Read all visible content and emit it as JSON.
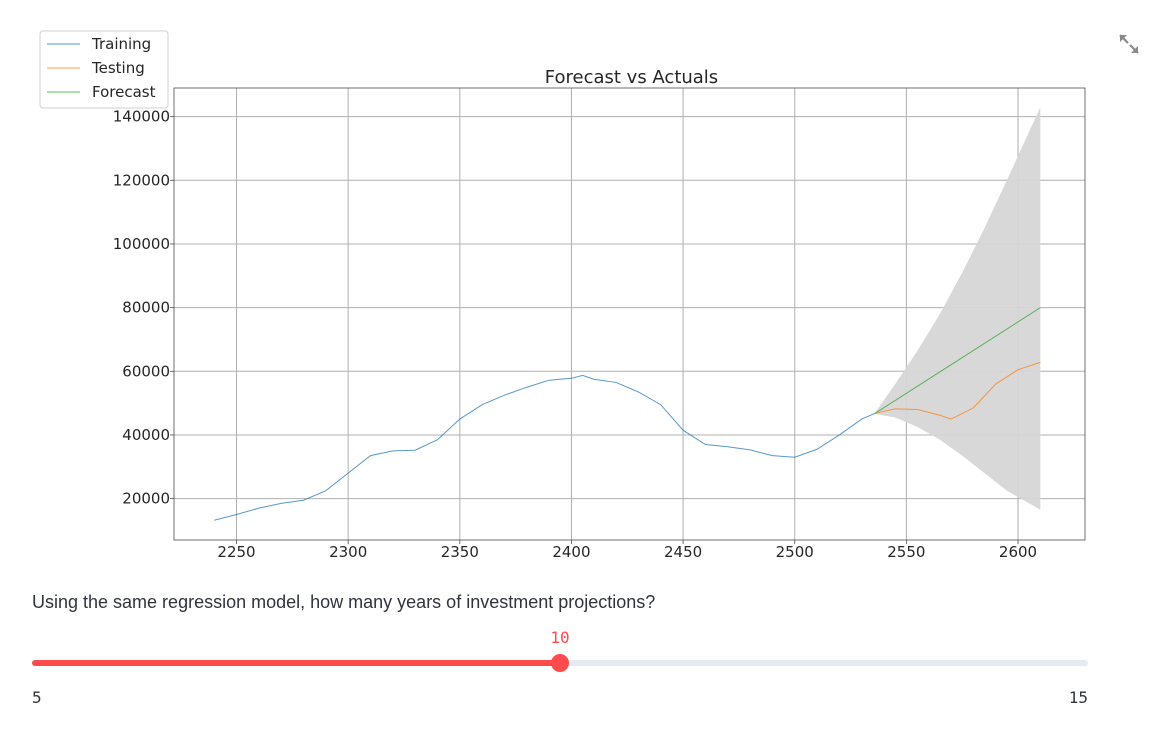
{
  "chart_data": {
    "type": "line",
    "title": "Forecast vs Actuals",
    "xlabel": "",
    "ylabel": "",
    "xlim": [
      2222,
      2630
    ],
    "ylim": [
      7000,
      149000
    ],
    "x_ticks": [
      2250,
      2300,
      2350,
      2400,
      2450,
      2500,
      2550,
      2600
    ],
    "y_ticks": [
      20000,
      40000,
      60000,
      80000,
      100000,
      120000,
      140000
    ],
    "grid": true,
    "legend_position": "top-left",
    "series": [
      {
        "name": "Training",
        "color": "#1f77b4",
        "points": [
          [
            2240,
            13200
          ],
          [
            2250,
            15000
          ],
          [
            2260,
            17000
          ],
          [
            2270,
            18500
          ],
          [
            2280,
            19500
          ],
          [
            2290,
            22500
          ],
          [
            2300,
            28000
          ],
          [
            2310,
            33500
          ],
          [
            2320,
            35000
          ],
          [
            2330,
            35200
          ],
          [
            2340,
            38500
          ],
          [
            2350,
            45000
          ],
          [
            2360,
            49500
          ],
          [
            2370,
            52500
          ],
          [
            2380,
            55000
          ],
          [
            2390,
            57200
          ],
          [
            2400,
            57800
          ],
          [
            2405,
            58700
          ],
          [
            2410,
            57500
          ],
          [
            2420,
            56500
          ],
          [
            2430,
            53500
          ],
          [
            2440,
            49500
          ],
          [
            2450,
            41500
          ],
          [
            2460,
            37000
          ],
          [
            2470,
            36300
          ],
          [
            2480,
            35300
          ],
          [
            2490,
            33500
          ],
          [
            2500,
            33000
          ],
          [
            2510,
            35500
          ],
          [
            2520,
            40000
          ],
          [
            2530,
            45000
          ],
          [
            2536,
            46800
          ]
        ]
      },
      {
        "name": "Testing",
        "color": "#ff7f0e",
        "points": [
          [
            2536,
            46800
          ],
          [
            2545,
            48200
          ],
          [
            2555,
            48000
          ],
          [
            2565,
            46200
          ],
          [
            2570,
            45000
          ],
          [
            2580,
            48500
          ],
          [
            2590,
            56000
          ],
          [
            2600,
            60500
          ],
          [
            2610,
            62800
          ]
        ]
      },
      {
        "name": "Forecast",
        "color": "#2ca02c",
        "points": [
          [
            2536,
            46800
          ],
          [
            2610,
            80000
          ]
        ]
      }
    ],
    "confidence_band": {
      "color": "#d6d6d6",
      "x": [
        2536,
        2545,
        2555,
        2565,
        2575,
        2585,
        2595,
        2610
      ],
      "upper": [
        47000,
        56000,
        66500,
        78000,
        91000,
        105000,
        120000,
        143000
      ],
      "lower": [
        46600,
        45500,
        42500,
        38500,
        33500,
        28000,
        22500,
        16500
      ]
    }
  },
  "expand_icon": "expand-arrows-icon",
  "question": "Using the same regression model, how many years of investment projections?",
  "slider": {
    "min": 5,
    "max": 15,
    "value": 10,
    "min_label": "5",
    "max_label": "15",
    "value_label": "10",
    "accent": "#ff4b4b"
  }
}
